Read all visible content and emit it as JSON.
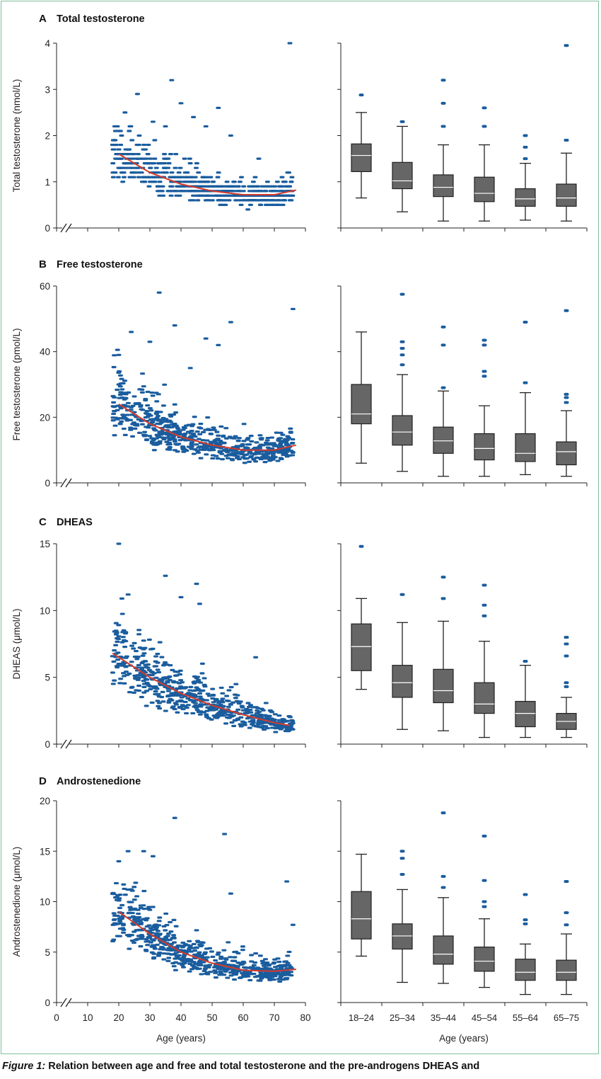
{
  "caption": {
    "label": "Figure 1:",
    "text": "Relation between age and free and total testosterone and the pre-androgens DHEAS and"
  },
  "colors": {
    "dot": "#1a5d9e",
    "curve": "#d63a2a",
    "box": "#666666",
    "axis": "#222222",
    "frame": "#7fbf9a"
  },
  "chart_data": [
    {
      "type": "scatter",
      "panel_letter": "A",
      "title": "Total testosterone",
      "ylabel": "Total testosterone (nmol/L)",
      "ylim": [
        0,
        4
      ],
      "yticks": [
        "0",
        "1",
        "2",
        "3",
        "4"
      ],
      "xlim": [
        0,
        80
      ],
      "fit_curve": {
        "x": [
          20,
          30,
          40,
          50,
          60,
          70,
          77
        ],
        "y": [
          1.6,
          1.2,
          0.95,
          0.8,
          0.72,
          0.72,
          0.82
        ]
      },
      "outliers": {
        "x": [
          20,
          22,
          26,
          31,
          35,
          37,
          40,
          44,
          48,
          52,
          56,
          65,
          75
        ],
        "y": [
          2.1,
          2.5,
          2.9,
          2.3,
          2.2,
          3.2,
          2.7,
          2.4,
          2.2,
          2.6,
          2.0,
          1.5,
          4.0
        ]
      },
      "boxplot": {
        "categories": [
          "18–24",
          "25–34",
          "35–44",
          "45–54",
          "55–64",
          "65–75"
        ],
        "q1": [
          1.22,
          0.85,
          0.68,
          0.57,
          0.47,
          0.47
        ],
        "median": [
          1.57,
          1.02,
          0.88,
          0.75,
          0.63,
          0.65
        ],
        "q3": [
          1.82,
          1.42,
          1.15,
          1.1,
          0.85,
          0.95
        ],
        "whisker_low": [
          0.65,
          0.35,
          0.15,
          0.15,
          0.17,
          0.15
        ],
        "whisker_high": [
          2.5,
          2.2,
          1.8,
          1.8,
          1.4,
          1.62
        ],
        "fliers": [
          [
            2.88
          ],
          [
            2.3
          ],
          [
            2.2,
            2.7,
            3.2
          ],
          [
            2.2,
            2.6
          ],
          [
            1.5,
            1.75,
            2.0
          ],
          [
            1.9,
            3.95
          ]
        ]
      }
    },
    {
      "type": "scatter",
      "panel_letter": "B",
      "title": "Free testosterone",
      "ylabel": "Free testosterone (pmol/L)",
      "ylim": [
        0,
        60
      ],
      "yticks": [
        "0",
        "20",
        "40",
        "60"
      ],
      "xlim": [
        0,
        80
      ],
      "fit_curve": {
        "x": [
          20,
          30,
          40,
          50,
          60,
          70,
          77
        ],
        "y": [
          24,
          18,
          14,
          11.5,
          10,
          10,
          11.5
        ]
      },
      "outliers": {
        "x": [
          20,
          24,
          30,
          33,
          38,
          43,
          48,
          52,
          56,
          76
        ],
        "y": [
          39,
          46,
          43,
          58,
          48,
          35,
          44,
          42,
          49,
          53
        ]
      },
      "boxplot": {
        "categories": [
          "18–24",
          "25–34",
          "35–44",
          "45–54",
          "55–64",
          "65–75"
        ],
        "q1": [
          18,
          11.5,
          9,
          7,
          6.5,
          5.5
        ],
        "median": [
          21,
          15.5,
          12.8,
          10.5,
          9,
          9.5
        ],
        "q3": [
          30,
          20.5,
          17,
          15,
          15,
          12.5
        ],
        "whisker_low": [
          6,
          3.5,
          2,
          2,
          2.5,
          2
        ],
        "whisker_high": [
          46,
          33,
          28,
          23.5,
          27.5,
          22
        ],
        "fliers": [
          [],
          [
            36,
            39,
            41,
            43,
            57.5
          ],
          [
            29,
            42,
            47.5
          ],
          [
            32.5,
            34,
            42,
            43.5
          ],
          [
            30.5,
            49
          ],
          [
            24.5,
            26,
            27,
            52.5
          ]
        ]
      }
    },
    {
      "type": "scatter",
      "panel_letter": "C",
      "title": "DHEAS",
      "ylabel": "DHEAS (μmol/L)",
      "ylim": [
        0,
        15
      ],
      "yticks": [
        "0",
        "5",
        "10",
        "15"
      ],
      "xlim": [
        0,
        80
      ],
      "fit_curve": {
        "x": [
          18,
          30,
          40,
          50,
          60,
          70,
          75
        ],
        "y": [
          6.8,
          5.0,
          3.8,
          2.9,
          2.2,
          1.6,
          1.4
        ]
      },
      "outliers": {
        "x": [
          20,
          21,
          23,
          35,
          40,
          45,
          46,
          64
        ],
        "y": [
          15,
          10.9,
          11.2,
          12.6,
          11,
          12,
          10.5,
          6.5
        ]
      },
      "boxplot": {
        "categories": [
          "18–24",
          "25–34",
          "35–44",
          "45–54",
          "55–64",
          "65–75"
        ],
        "q1": [
          5.5,
          3.5,
          3.1,
          2.3,
          1.3,
          1.1
        ],
        "median": [
          7.3,
          4.6,
          4.0,
          3.0,
          2.3,
          1.7
        ],
        "q3": [
          9.0,
          5.9,
          5.6,
          4.6,
          3.2,
          2.3
        ],
        "whisker_low": [
          4.1,
          1.1,
          1.0,
          0.5,
          0.5,
          0.5
        ],
        "whisker_high": [
          10.9,
          9.1,
          9.2,
          7.7,
          5.9,
          3.5
        ],
        "fliers": [
          [
            14.8
          ],
          [
            11.2
          ],
          [
            10.9,
            12.5
          ],
          [
            9.6,
            10.4,
            11.9
          ],
          [
            6.2
          ],
          [
            4.3,
            4.6,
            6.6,
            7.5,
            8.0
          ]
        ]
      }
    },
    {
      "type": "scatter",
      "panel_letter": "D",
      "title": "Androstenedione",
      "ylabel": "Androstenedione (μmol/L)",
      "ylim": [
        0,
        20
      ],
      "yticks": [
        "0",
        "5",
        "10",
        "15",
        "20"
      ],
      "xlim": [
        0,
        80
      ],
      "xticks": [
        "0",
        "10",
        "20",
        "30",
        "40",
        "50",
        "60",
        "70",
        "80"
      ],
      "xlabel": "Age (years)",
      "box_xlabel": "Age (years)",
      "fit_curve": {
        "x": [
          20,
          30,
          40,
          50,
          60,
          70,
          77
        ],
        "y": [
          9,
          6.8,
          5.0,
          3.9,
          3.2,
          3.1,
          3.3
        ]
      },
      "outliers": {
        "x": [
          20,
          23,
          28,
          31,
          38,
          54,
          56,
          74,
          76
        ],
        "y": [
          14,
          15,
          15,
          14.5,
          18.3,
          16.7,
          10.8,
          12,
          7.7
        ]
      },
      "boxplot": {
        "categories": [
          "18–24",
          "25–34",
          "35–44",
          "45–54",
          "55–64",
          "65–75"
        ],
        "q1": [
          6.3,
          5.3,
          3.8,
          3.1,
          2.2,
          2.2
        ],
        "median": [
          8.3,
          6.6,
          4.8,
          4.1,
          3.0,
          3.0
        ],
        "q3": [
          11.0,
          7.8,
          6.6,
          5.5,
          4.3,
          4.2
        ],
        "whisker_low": [
          4.6,
          2.0,
          1.9,
          1.5,
          0.8,
          0.8
        ],
        "whisker_high": [
          14.7,
          11.2,
          10.4,
          8.3,
          5.8,
          6.8
        ],
        "fliers": [
          [],
          [
            12.7,
            14.3,
            15.0
          ],
          [
            11.4,
            12.5,
            18.8
          ],
          [
            9.5,
            10.0,
            12.1,
            16.5
          ],
          [
            7.8,
            8.2,
            10.7
          ],
          [
            7.7,
            8.9,
            12.0
          ]
        ]
      }
    }
  ]
}
